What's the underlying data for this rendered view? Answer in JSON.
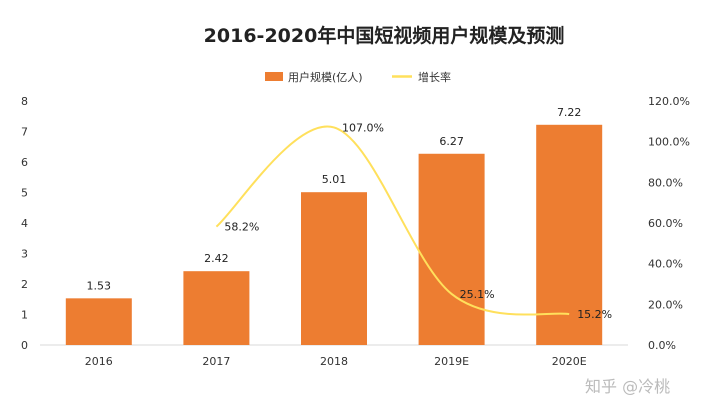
{
  "chart_data": {
    "type": "bar",
    "title": "2016-2020年中国短视频用户规模及预测",
    "categories": [
      "2016",
      "2017",
      "2018",
      "2019E",
      "2020E"
    ],
    "series": [
      {
        "name": "用户规模(亿人)",
        "type": "bar",
        "axis": "left",
        "values": [
          1.53,
          2.42,
          5.01,
          6.27,
          7.22
        ],
        "labels": [
          "1.53",
          "2.42",
          "5.01",
          "6.27",
          "7.22"
        ]
      },
      {
        "name": "增长率",
        "type": "line",
        "axis": "right",
        "values": [
          null,
          58.2,
          107.0,
          25.1,
          15.2
        ],
        "labels": [
          "",
          "58.2%",
          "107.0%",
          "25.1%",
          "15.2%"
        ]
      }
    ],
    "y_left": {
      "min": 0,
      "max": 8,
      "ticks": [
        "0",
        "1",
        "2",
        "3",
        "4",
        "5",
        "6",
        "7",
        "8"
      ]
    },
    "y_right": {
      "min": 0,
      "max": 120,
      "ticks": [
        "0.0%",
        "20.0%",
        "40.0%",
        "60.0%",
        "80.0%",
        "100.0%",
        "120.0%"
      ]
    },
    "legend_position": "top-center",
    "colors": {
      "bar": "#ED7D31",
      "line": "#FFE05C"
    }
  },
  "watermark": "知乎 @冷桃"
}
